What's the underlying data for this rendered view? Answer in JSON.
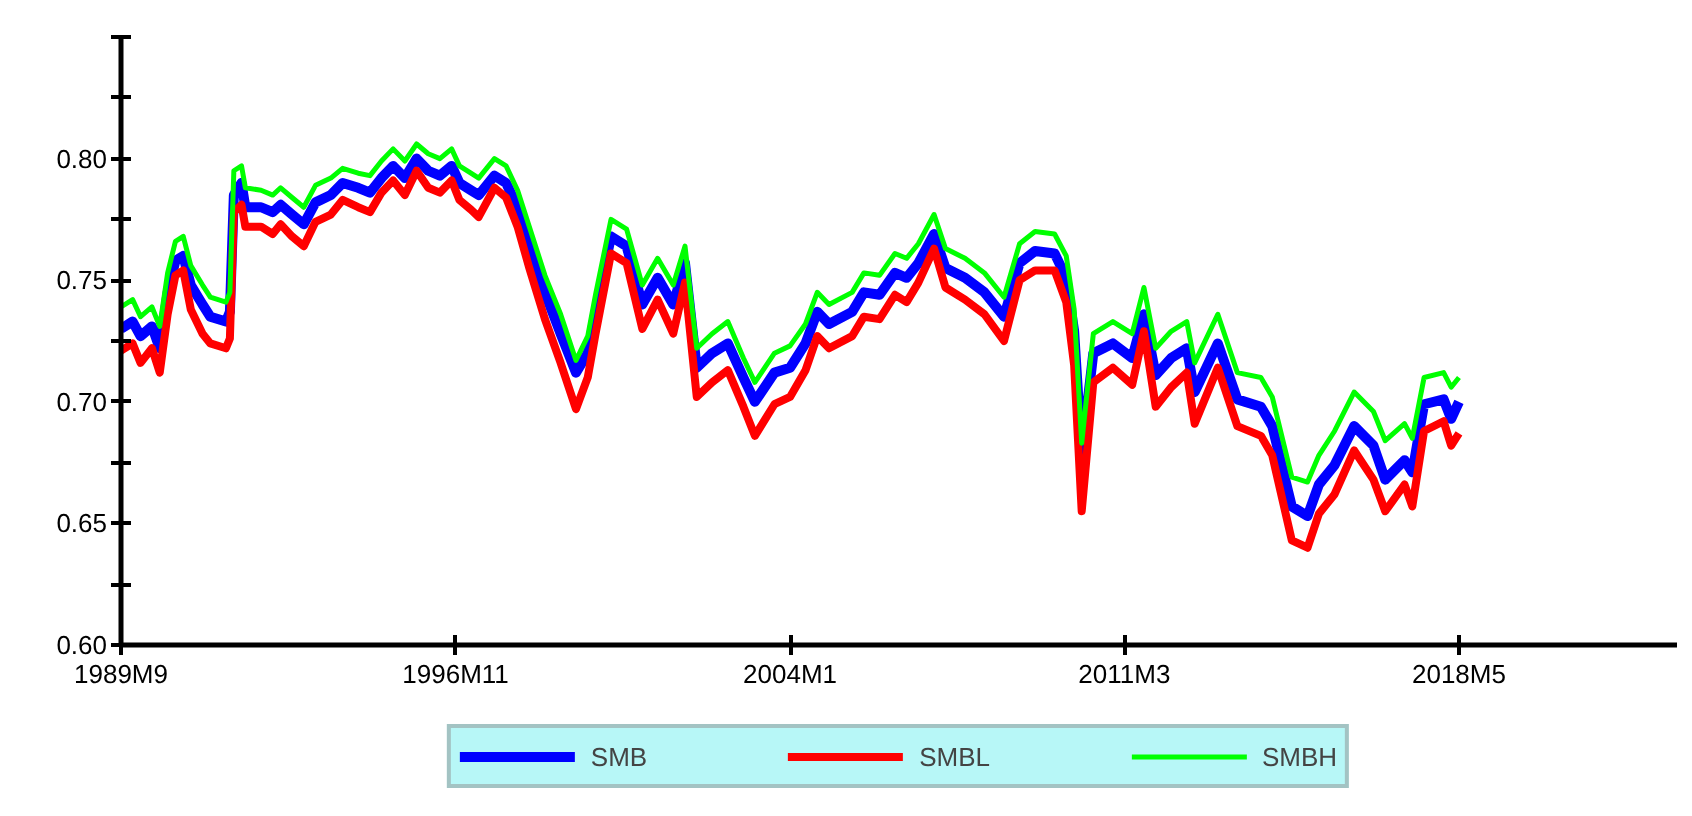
{
  "chart_data": {
    "type": "line",
    "x": [
      "1989-09",
      "1989-12",
      "1990-02",
      "1990-05",
      "1990-07",
      "1990-09",
      "1990-11",
      "1991-01",
      "1991-03",
      "1991-06",
      "1991-08",
      "1991-12",
      "1992-01",
      "1992-02",
      "1992-04",
      "1992-05",
      "1992-09",
      "1992-12",
      "1993-02",
      "1993-05",
      "1993-08",
      "1993-11",
      "1994-03",
      "1994-06",
      "1994-10",
      "1995-01",
      "1995-04",
      "1995-07",
      "1995-10",
      "1996-01",
      "1996-04",
      "1996-07",
      "1996-10",
      "1996-12",
      "1997-03",
      "1997-05",
      "1997-09",
      "1997-12",
      "1998-03",
      "1998-06",
      "1998-10",
      "1999-02",
      "1999-06",
      "1999-09",
      "1999-11",
      "2000-03",
      "2000-07",
      "2000-11",
      "2001-03",
      "2001-07",
      "2001-10",
      "2002-01",
      "2002-05",
      "2002-09",
      "2003-01",
      "2003-04",
      "2003-09",
      "2004-01",
      "2004-05",
      "2004-08",
      "2004-11",
      "2005-05",
      "2005-08",
      "2005-12",
      "2006-04",
      "2006-07",
      "2006-10",
      "2007-02",
      "2007-05",
      "2007-10",
      "2008-03",
      "2008-08",
      "2008-12",
      "2009-04",
      "2009-09",
      "2009-12",
      "2010-02",
      "2010-04",
      "2010-07",
      "2010-12",
      "2011-05",
      "2011-08",
      "2011-11",
      "2012-03",
      "2012-07",
      "2012-09",
      "2013-03",
      "2013-08",
      "2014-02",
      "2014-05",
      "2014-10",
      "2015-02",
      "2015-05",
      "2015-09",
      "2016-02",
      "2016-07",
      "2016-10",
      "2017-03",
      "2017-05",
      "2017-08",
      "2018-01",
      "2018-03",
      "2018-05"
    ],
    "xlim": [
      "1989-09",
      "2023-01"
    ],
    "xticks": [
      {
        "value": "1989-09",
        "label": "1989M9"
      },
      {
        "value": "1996-11",
        "label": "1996M11"
      },
      {
        "value": "2004-01",
        "label": "2004M1"
      },
      {
        "value": "2011-03",
        "label": "2011M3"
      },
      {
        "value": "2018-05",
        "label": "2018M5"
      }
    ],
    "ylim": [
      0.6,
      0.85
    ],
    "yticks": [
      {
        "value": 0.6,
        "label": "0.60"
      },
      {
        "value": 0.625,
        "label": null
      },
      {
        "value": 0.65,
        "label": "0.65"
      },
      {
        "value": 0.675,
        "label": null
      },
      {
        "value": 0.7,
        "label": "0.70"
      },
      {
        "value": 0.725,
        "label": null
      },
      {
        "value": 0.75,
        "label": "0.75"
      },
      {
        "value": 0.775,
        "label": null
      },
      {
        "value": 0.8,
        "label": "0.80"
      },
      {
        "value": 0.825,
        "label": null
      },
      {
        "value": 0.85,
        "label": null
      }
    ],
    "legend": "bottom",
    "series": [
      {
        "name": "SMB",
        "color": "#0000ff",
        "values": [
          0.73,
          0.733,
          0.727,
          0.731,
          0.722,
          0.745,
          0.758,
          0.76,
          0.748,
          0.74,
          0.735,
          0.733,
          0.737,
          0.785,
          0.79,
          0.78,
          0.78,
          0.778,
          0.781,
          0.777,
          0.773,
          0.782,
          0.785,
          0.79,
          0.788,
          0.786,
          0.792,
          0.797,
          0.792,
          0.8,
          0.795,
          0.793,
          0.797,
          0.79,
          0.787,
          0.785,
          0.793,
          0.79,
          0.78,
          0.765,
          0.745,
          0.728,
          0.712,
          0.72,
          0.737,
          0.768,
          0.764,
          0.74,
          0.751,
          0.74,
          0.757,
          0.714,
          0.72,
          0.724,
          0.71,
          0.7,
          0.712,
          0.714,
          0.724,
          0.737,
          0.732,
          0.737,
          0.745,
          0.744,
          0.753,
          0.751,
          0.757,
          0.769,
          0.755,
          0.751,
          0.745,
          0.735,
          0.757,
          0.762,
          0.761,
          0.751,
          0.729,
          0.679,
          0.72,
          0.724,
          0.718,
          0.736,
          0.711,
          0.718,
          0.722,
          0.704,
          0.724,
          0.701,
          0.698,
          0.69,
          0.657,
          0.653,
          0.666,
          0.674,
          0.69,
          0.682,
          0.668,
          0.676,
          0.671,
          0.699,
          0.701,
          0.693,
          0.7
        ]
      },
      {
        "name": "SMBL",
        "color": "#ff0000",
        "values": [
          0.721,
          0.724,
          0.716,
          0.722,
          0.712,
          0.736,
          0.752,
          0.754,
          0.738,
          0.728,
          0.724,
          0.722,
          0.726,
          0.778,
          0.781,
          0.772,
          0.772,
          0.769,
          0.773,
          0.768,
          0.764,
          0.774,
          0.777,
          0.783,
          0.78,
          0.778,
          0.786,
          0.791,
          0.785,
          0.795,
          0.788,
          0.786,
          0.791,
          0.783,
          0.779,
          0.776,
          0.788,
          0.784,
          0.772,
          0.755,
          0.734,
          0.716,
          0.697,
          0.71,
          0.728,
          0.761,
          0.757,
          0.73,
          0.742,
          0.728,
          0.749,
          0.702,
          0.708,
          0.713,
          0.698,
          0.686,
          0.699,
          0.702,
          0.713,
          0.727,
          0.722,
          0.727,
          0.735,
          0.734,
          0.744,
          0.741,
          0.749,
          0.763,
          0.747,
          0.742,
          0.736,
          0.725,
          0.75,
          0.754,
          0.754,
          0.741,
          0.715,
          0.655,
          0.708,
          0.714,
          0.707,
          0.729,
          0.698,
          0.706,
          0.712,
          0.691,
          0.714,
          0.69,
          0.686,
          0.678,
          0.643,
          0.64,
          0.654,
          0.662,
          0.68,
          0.668,
          0.655,
          0.666,
          0.657,
          0.688,
          0.692,
          0.682,
          0.687
        ]
      },
      {
        "name": "SMBH",
        "color": "#00ff00",
        "values": [
          0.739,
          0.742,
          0.735,
          0.739,
          0.731,
          0.753,
          0.766,
          0.768,
          0.756,
          0.748,
          0.743,
          0.741,
          0.745,
          0.795,
          0.797,
          0.788,
          0.787,
          0.785,
          0.788,
          0.784,
          0.78,
          0.789,
          0.792,
          0.796,
          0.794,
          0.793,
          0.799,
          0.804,
          0.799,
          0.806,
          0.802,
          0.8,
          0.804,
          0.797,
          0.794,
          0.792,
          0.8,
          0.797,
          0.787,
          0.772,
          0.752,
          0.736,
          0.717,
          0.727,
          0.744,
          0.775,
          0.771,
          0.748,
          0.759,
          0.748,
          0.764,
          0.722,
          0.728,
          0.733,
          0.718,
          0.708,
          0.72,
          0.723,
          0.732,
          0.745,
          0.74,
          0.745,
          0.753,
          0.752,
          0.761,
          0.759,
          0.765,
          0.777,
          0.763,
          0.759,
          0.753,
          0.743,
          0.765,
          0.77,
          0.769,
          0.76,
          0.738,
          0.683,
          0.728,
          0.733,
          0.728,
          0.747,
          0.722,
          0.729,
          0.733,
          0.716,
          0.736,
          0.712,
          0.71,
          0.702,
          0.669,
          0.667,
          0.678,
          0.688,
          0.704,
          0.696,
          0.684,
          0.691,
          0.685,
          0.71,
          0.712,
          0.706,
          0.71
        ]
      }
    ]
  }
}
